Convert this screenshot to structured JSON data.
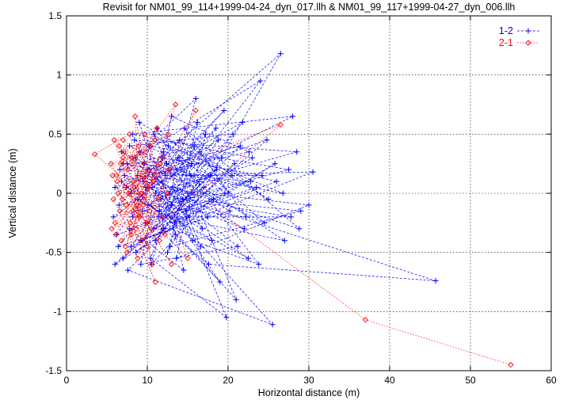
{
  "chart_data": {
    "type": "line",
    "title": "Revisit for NM01_99_114+1999-04-24_dyn_017.llh & NM01_99_117+1999-04-27_dyn_006.llh",
    "xlabel": "Horizontal distance (m)",
    "ylabel": "Vertical distance (m)",
    "xlim": [
      0,
      60
    ],
    "ylim": [
      -1.5,
      1.5
    ],
    "xticks": [
      "0",
      "10",
      "20",
      "30",
      "40",
      "50",
      "60"
    ],
    "yticks": [
      "-1.5",
      "-1",
      "-0.5",
      "0",
      "0.5",
      "1",
      "1.5"
    ],
    "grid": true,
    "legend_position": "top-right",
    "series": [
      {
        "name": "1-2",
        "color": "#0000ff",
        "marker": "plus",
        "line": "dashed",
        "points": [
          [
            12.0,
            0.35
          ],
          [
            9.5,
            0.1
          ],
          [
            15.2,
            -0.2
          ],
          [
            8.0,
            -0.45
          ],
          [
            18.5,
            0.55
          ],
          [
            11.0,
            0.0
          ],
          [
            22.0,
            -0.3
          ],
          [
            7.5,
            0.25
          ],
          [
            16.0,
            0.8
          ],
          [
            10.5,
            -0.6
          ],
          [
            20.5,
            0.15
          ],
          [
            6.5,
            -0.1
          ],
          [
            14.0,
            0.45
          ],
          [
            25.0,
            -0.05
          ],
          [
            9.0,
            0.6
          ],
          [
            13.5,
            -0.35
          ],
          [
            19.0,
            -0.75
          ],
          [
            8.5,
            0.3
          ],
          [
            24.0,
            0.95
          ],
          [
            11.5,
            -0.15
          ],
          [
            17.0,
            0.05
          ],
          [
            7.0,
            -0.55
          ],
          [
            21.5,
            0.4
          ],
          [
            10.0,
            0.2
          ],
          [
            26.5,
            1.18
          ],
          [
            12.5,
            -0.5
          ],
          [
            15.5,
            0.25
          ],
          [
            6.0,
            0.05
          ],
          [
            18.0,
            -0.4
          ],
          [
            9.8,
            -0.25
          ],
          [
            23.0,
            0.3
          ],
          [
            8.2,
            0.5
          ],
          [
            28.0,
            0.65
          ],
          [
            11.8,
            0.1
          ],
          [
            14.5,
            -0.65
          ],
          [
            7.8,
            -0.3
          ],
          [
            20.0,
            0.0
          ],
          [
            16.5,
            0.35
          ],
          [
            5.8,
            -0.2
          ],
          [
            27.5,
            0.2
          ],
          [
            10.2,
            0.4
          ],
          [
            13.0,
            -0.1
          ],
          [
            22.5,
            -0.55
          ],
          [
            8.8,
            -0.05
          ],
          [
            19.5,
            0.7
          ],
          [
            12.2,
            0.15
          ],
          [
            30.5,
            0.18
          ],
          [
            9.2,
            -0.4
          ],
          [
            17.5,
            -0.2
          ],
          [
            6.8,
            0.35
          ],
          [
            24.5,
            -0.25
          ],
          [
            11.2,
            0.55
          ],
          [
            15.0,
            0.0
          ],
          [
            7.2,
            0.15
          ],
          [
            21.0,
            -0.9
          ],
          [
            13.8,
            0.3
          ],
          [
            26.0,
            0.1
          ],
          [
            10.8,
            -0.3
          ],
          [
            18.8,
            0.45
          ],
          [
            8.0,
            0.0
          ],
          [
            29.0,
            -0.15
          ],
          [
            12.8,
            -0.45
          ],
          [
            16.2,
            0.6
          ],
          [
            6.2,
            -0.35
          ],
          [
            23.5,
            0.05
          ],
          [
            9.6,
            0.25
          ],
          [
            14.8,
            -0.15
          ],
          [
            20.8,
            0.25
          ],
          [
            7.6,
            -0.65
          ],
          [
            25.5,
            -1.11
          ],
          [
            11.6,
            -0.05
          ],
          [
            17.8,
            0.15
          ],
          [
            8.4,
            0.45
          ],
          [
            28.5,
            0.35
          ],
          [
            13.2,
            0.05
          ],
          [
            19.8,
            -1.05
          ],
          [
            10.4,
            -0.55
          ],
          [
            15.8,
            0.4
          ],
          [
            6.6,
            0.2
          ],
          [
            22.8,
            0.1
          ],
          [
            9.4,
            -0.15
          ],
          [
            27.0,
            -0.4
          ],
          [
            12.4,
            0.25
          ],
          [
            16.8,
            -0.3
          ],
          [
            7.4,
            0.05
          ],
          [
            21.8,
            0.6
          ],
          [
            11.4,
            -0.2
          ],
          [
            18.2,
            -0.05
          ],
          [
            8.6,
            -0.5
          ],
          [
            24.8,
            0.45
          ],
          [
            14.2,
            0.2
          ],
          [
            10.6,
            0.05
          ],
          [
            30.0,
            -0.1
          ],
          [
            13.6,
            -0.55
          ],
          [
            17.2,
            0.5
          ],
          [
            6.4,
            -0.45
          ],
          [
            20.2,
            -0.15
          ],
          [
            9.0,
            0.35
          ],
          [
            15.6,
            -0.4
          ],
          [
            23.8,
            -0.6
          ],
          [
            12.6,
            0.4
          ],
          [
            26.8,
            0.0
          ],
          [
            7.0,
            0.25
          ],
          [
            19.2,
            0.3
          ],
          [
            11.0,
            -0.4
          ],
          [
            16.4,
            0.1
          ],
          [
            8.8,
            0.15
          ],
          [
            28.8,
            -0.3
          ],
          [
            14.6,
            0.55
          ],
          [
            22.2,
            -0.2
          ],
          [
            10.0,
            -0.1
          ],
          [
            18.6,
            0.2
          ],
          [
            6.0,
            -0.6
          ],
          [
            25.8,
            0.25
          ],
          [
            13.4,
            -0.25
          ],
          [
            9.8,
            0.05
          ],
          [
            45.7,
            -0.74
          ],
          [
            17.6,
            -0.6
          ],
          [
            12.0,
            -0.3
          ],
          [
            20.6,
            0.5
          ],
          [
            7.8,
            0.4
          ],
          [
            15.4,
            0.15
          ],
          [
            24.2,
            0.15
          ],
          [
            11.8,
            0.3
          ],
          [
            8.2,
            -0.2
          ],
          [
            27.8,
            -0.2
          ],
          [
            14.4,
            -0.05
          ],
          [
            19.6,
            0.0
          ],
          [
            10.8,
            0.5
          ],
          [
            16.6,
            -0.45
          ],
          [
            6.8,
            0.1
          ],
          [
            22.6,
            0.35
          ],
          [
            13.0,
            0.65
          ],
          [
            9.2,
            -0.6
          ],
          [
            21.2,
            -0.45
          ],
          [
            12.8,
            0.0
          ]
        ]
      },
      {
        "name": "2-1",
        "color": "#ff0000",
        "marker": "diamond",
        "line": "dotted",
        "points": [
          [
            7.0,
            0.3
          ],
          [
            9.5,
            -0.1
          ],
          [
            6.2,
            0.15
          ],
          [
            11.0,
            0.45
          ],
          [
            8.0,
            -0.35
          ],
          [
            5.8,
            -0.05
          ],
          [
            10.2,
            0.2
          ],
          [
            7.5,
            -0.5
          ],
          [
            12.5,
            0.0
          ],
          [
            6.5,
            0.4
          ],
          [
            9.0,
            -0.2
          ],
          [
            8.5,
            0.65
          ],
          [
            11.5,
            -0.4
          ],
          [
            6.0,
            -0.25
          ],
          [
            10.8,
            0.1
          ],
          [
            7.2,
            0.05
          ],
          [
            13.0,
            -0.6
          ],
          [
            5.5,
            0.25
          ],
          [
            9.8,
            0.35
          ],
          [
            8.2,
            -0.15
          ],
          [
            12.0,
            0.3
          ],
          [
            6.8,
            -0.4
          ],
          [
            10.5,
            -0.3
          ],
          [
            7.8,
            0.5
          ],
          [
            3.5,
            0.33
          ],
          [
            9.2,
            0.0
          ],
          [
            11.2,
            0.55
          ],
          [
            6.3,
            0.1
          ],
          [
            8.8,
            -0.55
          ],
          [
            12.8,
            0.2
          ],
          [
            7.4,
            -0.1
          ],
          [
            10.0,
            -0.45
          ],
          [
            5.9,
            0.45
          ],
          [
            9.6,
            0.25
          ],
          [
            8.4,
            0.05
          ],
          [
            11.8,
            -0.2
          ],
          [
            6.6,
            -0.15
          ],
          [
            10.4,
            0.4
          ],
          [
            7.6,
            0.2
          ],
          [
            13.5,
            0.75
          ],
          [
            8.6,
            -0.3
          ],
          [
            6.1,
            -0.35
          ],
          [
            9.4,
            0.15
          ],
          [
            11.4,
            -0.05
          ],
          [
            7.1,
            0.35
          ],
          [
            10.6,
            -0.6
          ],
          [
            8.1,
            0.3
          ],
          [
            12.2,
            -0.35
          ],
          [
            6.4,
            0.0
          ],
          [
            9.9,
            -0.25
          ],
          [
            16.0,
            0.7
          ],
          [
            7.9,
            -0.25
          ],
          [
            11.0,
            -0.75
          ],
          [
            5.7,
            0.15
          ],
          [
            8.9,
            0.4
          ],
          [
            10.1,
            0.05
          ],
          [
            7.3,
            -0.45
          ],
          [
            12.6,
            0.5
          ],
          [
            6.7,
            0.25
          ],
          [
            9.3,
            -0.4
          ],
          [
            26.5,
            0.58
          ],
          [
            8.3,
            0.1
          ],
          [
            10.9,
            0.15
          ],
          [
            7.7,
            0.0
          ],
          [
            11.6,
            0.25
          ],
          [
            6.9,
            -0.05
          ],
          [
            9.7,
            0.5
          ],
          [
            15.0,
            -0.55
          ],
          [
            8.7,
            -0.1
          ],
          [
            5.6,
            -0.3
          ],
          [
            10.3,
            -0.15
          ],
          [
            7.0,
            0.45
          ],
          [
            37.0,
            -1.07
          ],
          [
            55.0,
            -1.45
          ]
        ]
      }
    ]
  }
}
